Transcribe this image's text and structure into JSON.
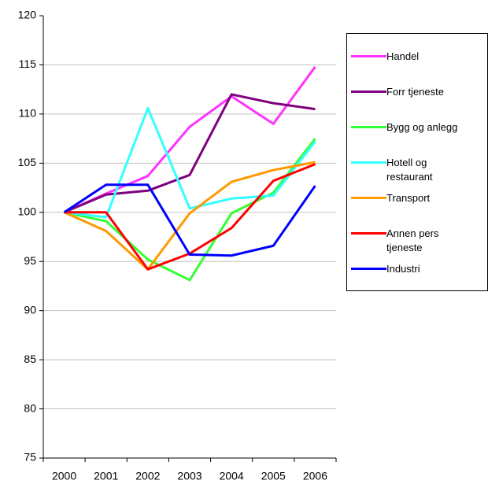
{
  "chart_data": {
    "type": "line",
    "categories": [
      "2000",
      "2001",
      "2002",
      "2003",
      "2004",
      "2005",
      "2006"
    ],
    "ylim": [
      75,
      120
    ],
    "yticks": [
      75,
      80,
      85,
      90,
      95,
      100,
      105,
      110,
      115,
      120
    ],
    "grid": true,
    "series": [
      {
        "name": "Handel",
        "color": "#ff33ff",
        "values": [
          100,
          101.9,
          103.7,
          108.7,
          111.8,
          109,
          114.8
        ]
      },
      {
        "name": "Forr tjeneste",
        "color": "#800080",
        "values": [
          100,
          101.8,
          102.2,
          103.8,
          112,
          111.1,
          110.5
        ]
      },
      {
        "name": "Bygg og anlegg",
        "color": "#33ff33",
        "values": [
          100,
          99.1,
          95.2,
          93.1,
          99.9,
          102,
          107.5
        ]
      },
      {
        "name": "Hotell og restaurant",
        "color": "#33ffff",
        "values": [
          100,
          99.5,
          110.6,
          100.4,
          101.4,
          101.7,
          107.2
        ]
      },
      {
        "name": "Transport",
        "color": "#ff9900",
        "values": [
          100,
          98.1,
          94.2,
          99.9,
          103.1,
          104.3,
          105.1
        ]
      },
      {
        "name": "Annen pers tjeneste",
        "color": "#ff0000",
        "values": [
          100,
          100,
          94.2,
          95.8,
          98.4,
          103.2,
          104.9
        ]
      },
      {
        "name": "Industri",
        "color": "#0000ff",
        "values": [
          100,
          102.8,
          102.8,
          95.7,
          95.6,
          96.6,
          102.7
        ]
      }
    ]
  }
}
